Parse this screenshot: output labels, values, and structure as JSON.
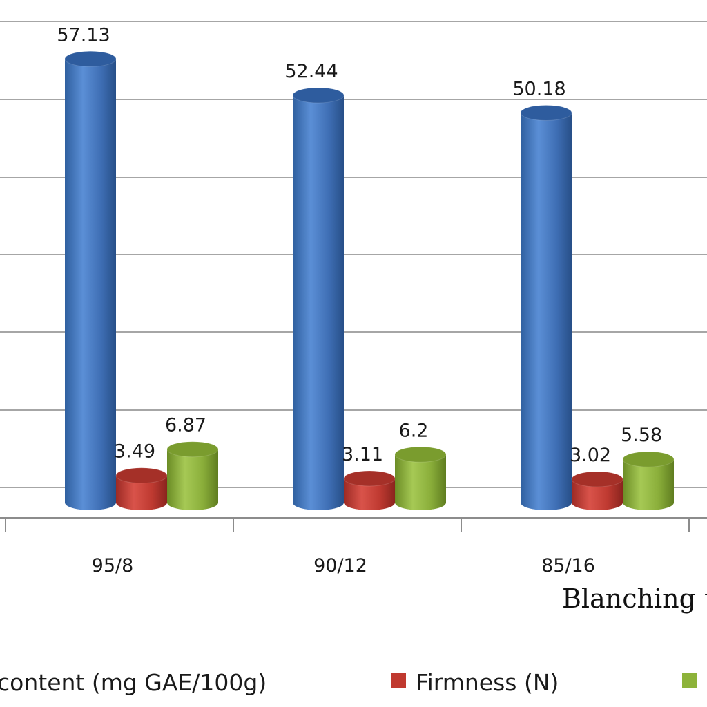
{
  "chart_data": {
    "type": "bar",
    "categories": [
      "95/8",
      "90/12",
      "85/16"
    ],
    "series": [
      {
        "name": "content (mg GAE/100g)",
        "values": [
          57.13,
          52.44,
          50.18
        ],
        "color": "#4a7cc4"
      },
      {
        "name": "Firmness (N)",
        "values": [
          3.49,
          3.11,
          3.02
        ],
        "color": "#c0392f"
      },
      {
        "name": "",
        "values": [
          6.87,
          6.2,
          5.58
        ],
        "color": "#8db33a"
      }
    ],
    "data_labels": [
      [
        "57.13",
        "52.44",
        "50.18"
      ],
      [
        "3.49",
        "3.11",
        "3.02"
      ],
      [
        "6.87",
        "6.2",
        "5.58"
      ]
    ],
    "xlabel": "Blanching te",
    "ylim": [
      0,
      60
    ],
    "gridlines": true,
    "legend_position": "bottom",
    "style": "3d-cylinder"
  }
}
